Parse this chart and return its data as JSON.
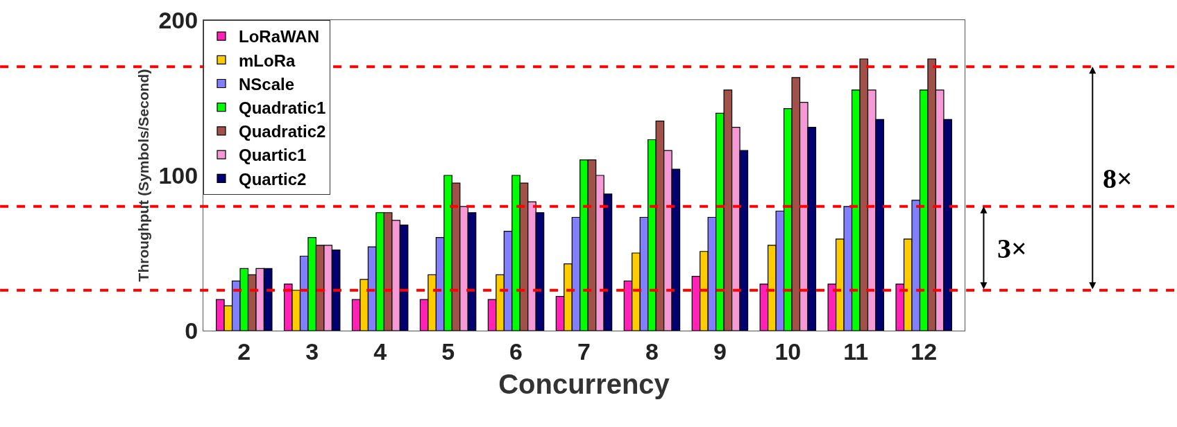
{
  "chart_data": {
    "type": "bar",
    "xlabel": "Concurrency",
    "ylabel": "Throughput (Symbols/Second)",
    "categories": [
      "2",
      "3",
      "4",
      "5",
      "6",
      "7",
      "8",
      "9",
      "10",
      "11",
      "12"
    ],
    "series": [
      {
        "name": "LoRaWAN",
        "color": "#ff22b4",
        "values": [
          20,
          30,
          20,
          20,
          20,
          22,
          32,
          35,
          30,
          30,
          30
        ]
      },
      {
        "name": "mLoRa",
        "color": "#ffcc00",
        "values": [
          16,
          26,
          33,
          36,
          36,
          43,
          50,
          51,
          55,
          59,
          59
        ]
      },
      {
        "name": "NScale",
        "color": "#8080ff",
        "values": [
          32,
          48,
          54,
          60,
          64,
          73,
          73,
          73,
          77,
          80,
          84
        ]
      },
      {
        "name": "Quadratic1",
        "color": "#00ff00",
        "values": [
          40,
          60,
          76,
          100,
          100,
          110,
          123,
          140,
          143,
          155,
          155
        ]
      },
      {
        "name": "Quadratic2",
        "color": "#a0524a",
        "values": [
          36,
          55,
          76,
          95,
          95,
          110,
          135,
          155,
          163,
          175,
          175
        ]
      },
      {
        "name": "Quartic1",
        "color": "#f59ad6",
        "values": [
          40,
          55,
          71,
          80,
          83,
          100,
          116,
          131,
          147,
          155,
          155
        ]
      },
      {
        "name": "Quartic2",
        "color": "#000070",
        "values": [
          40,
          52,
          68,
          76,
          76,
          88,
          104,
          116,
          131,
          136,
          136
        ]
      }
    ],
    "ylim": [
      0,
      200
    ],
    "yticks": [
      0,
      100,
      200
    ],
    "legend": "top left",
    "ref_lines": [
      {
        "axis": "y",
        "value": 26,
        "color": "#ff0000",
        "line_style": "dashed"
      },
      {
        "axis": "y",
        "value": 80,
        "color": "#ff0000",
        "line_style": "dashed"
      },
      {
        "axis": "y",
        "value": 170,
        "color": "#ff0000",
        "line_style": "dashed"
      }
    ],
    "annotations": [
      "3×",
      "8×"
    ]
  }
}
